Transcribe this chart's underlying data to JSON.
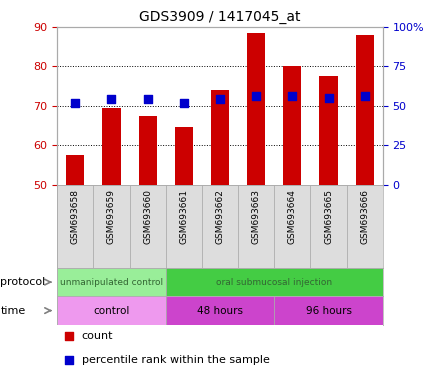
{
  "title": "GDS3909 / 1417045_at",
  "samples": [
    "GSM693658",
    "GSM693659",
    "GSM693660",
    "GSM693661",
    "GSM693662",
    "GSM693663",
    "GSM693664",
    "GSM693665",
    "GSM693666"
  ],
  "count_values": [
    57.5,
    69.5,
    67.5,
    64.5,
    74.0,
    88.5,
    80.0,
    77.5,
    88.0
  ],
  "percentile_values": [
    52,
    54,
    54,
    52,
    54,
    56,
    56,
    55,
    56
  ],
  "ylim_left": [
    50,
    90
  ],
  "ylim_right": [
    0,
    100
  ],
  "yticks_left": [
    50,
    60,
    70,
    80,
    90
  ],
  "yticks_right": [
    0,
    25,
    50,
    75,
    100
  ],
  "ytick_labels_right": [
    "0",
    "25",
    "50",
    "75",
    "100%"
  ],
  "bar_color": "#cc0000",
  "dot_color": "#0000cc",
  "bar_bottom": 50,
  "dot_size": 35,
  "protocol_groups": [
    {
      "label": "unmanipulated control",
      "start": 0,
      "end": 3,
      "color": "#99ee99"
    },
    {
      "label": "oral submucosal injection",
      "start": 3,
      "end": 9,
      "color": "#44cc44"
    }
  ],
  "time_groups": [
    {
      "label": "control",
      "start": 0,
      "end": 3,
      "color": "#ee99ee"
    },
    {
      "label": "48 hours",
      "start": 3,
      "end": 6,
      "color": "#cc44cc"
    },
    {
      "label": "96 hours",
      "start": 6,
      "end": 9,
      "color": "#cc44cc"
    }
  ],
  "legend_count_color": "#cc0000",
  "legend_pct_color": "#0000cc",
  "left_axis_color": "#cc0000",
  "right_axis_color": "#0000cc",
  "protocol_text_color": "#336633",
  "time_text_color": "#000000",
  "sample_bg_color": "#dddddd",
  "plot_bg_color": "#ffffff"
}
